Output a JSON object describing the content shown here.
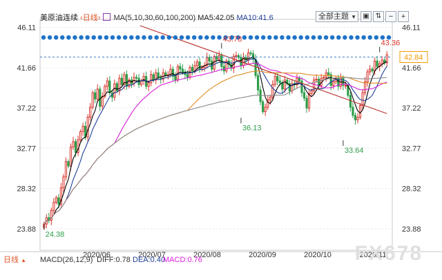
{
  "header": {
    "symbol": "美原油连续",
    "period": "‹日线›",
    "ma_icon": "ma-settings-icon",
    "ma_label": "MA(5,10,30,60,100,200)",
    "ma5": "MA5:42.05",
    "ma10": "MA10:41.6",
    "theme_button": "全部主题",
    "theme_caret": "▼"
  },
  "toolbar": {
    "icons": [
      "indicator-icon",
      "compare-icon",
      "zoom-out-icon",
      "zoom-in-icon"
    ]
  },
  "footer": {
    "period": "日线",
    "period_caret": "▲",
    "macd": "MACD(26,12,9)",
    "dif": "DIFF:0.78",
    "dea": "DEA:0.40",
    "macd_val": "MACD:0.76"
  },
  "watermark": "FX678",
  "colors": {
    "up": "#d9342b",
    "down": "#2e9e4a",
    "ma5": "#000000",
    "ma10": "#1f3f9a",
    "ma30": "#d81ed8",
    "ma60": "#e08a1e",
    "ma100": "#8a8a8a",
    "ma200": "#b8332e",
    "price_marker": "#f39800",
    "dashed": "#3a7fc4",
    "dots": "#1e73c8"
  },
  "chart_data": {
    "type": "candlestick",
    "title": "美原油连续",
    "ylim": [
      21.5,
      47.0
    ],
    "y_ticks": [
      "46.11",
      "41.66",
      "37.22",
      "32.77",
      "28.32",
      "23.88"
    ],
    "x_ticks": [
      "2020/06",
      "2020/07",
      "2020/08",
      "2020/09",
      "2020/10",
      "2020/11"
    ],
    "current_price": "42.84",
    "annotations": [
      {
        "label": "43.78",
        "value": 43.78,
        "type": "high",
        "x_frac": 0.52
      },
      {
        "label": "36.13",
        "value": 36.13,
        "type": "low",
        "x_frac": 0.574
      },
      {
        "label": "33.64",
        "value": 33.64,
        "type": "low",
        "x_frac": 0.874
      },
      {
        "label": "43.36",
        "value": 43.36,
        "type": "high",
        "x_frac": 0.978
      },
      {
        "label": "24.38",
        "value": 24.38,
        "type": "low",
        "x_frac": 0.0
      }
    ],
    "closes": [
      24.4,
      25.1,
      24.8,
      25.9,
      26.8,
      27.3,
      26.6,
      28.4,
      29.6,
      31.3,
      30.8,
      32.9,
      33.5,
      32.3,
      33.7,
      34.6,
      35.2,
      34.0,
      36.2,
      37.3,
      38.9,
      38.2,
      39.3,
      37.4,
      38.5,
      39.6,
      40.2,
      38.9,
      38.4,
      39.9,
      39.1,
      40.5,
      39.8,
      40.9,
      39.6,
      40.3,
      39.9,
      40.6,
      40.5,
      39.8,
      40.2,
      40.7,
      39.6,
      40.0,
      40.9,
      40.3,
      41.1,
      40.6,
      40.4,
      41.1,
      40.8,
      40.9,
      41.5,
      40.7,
      40.3,
      41.8,
      41.5,
      41.2,
      40.9,
      40.6,
      41.7,
      41.3,
      41.9,
      42.3,
      41.5,
      41.7,
      41.9,
      42.8,
      42.4,
      41.5,
      42.9,
      42.6,
      43.0,
      41.8,
      41.3,
      42.4,
      42.0,
      41.6,
      42.9,
      43.0,
      42.8,
      41.9,
      42.8,
      42.5,
      43.3,
      43.2,
      42.6,
      40.8,
      39.2,
      37.9,
      36.8,
      37.3,
      38.1,
      38.4,
      39.8,
      40.7,
      40.2,
      40.0,
      39.3,
      40.3,
      39.9,
      39.1,
      39.9,
      39.8,
      40.5,
      40.2,
      38.9,
      38.3,
      37.2,
      38.8,
      39.1,
      40.3,
      40.4,
      39.7,
      40.5,
      40.6,
      41.1,
      40.9,
      39.7,
      40.1,
      40.5,
      39.6,
      40.5,
      39.7,
      39.7,
      38.6,
      37.3,
      36.4,
      35.9,
      36.2,
      37.5,
      38.9,
      40.1,
      41.2,
      41.5,
      41.3,
      42.4,
      41.8,
      42.1,
      42.5,
      42.2,
      43.1
    ]
  }
}
